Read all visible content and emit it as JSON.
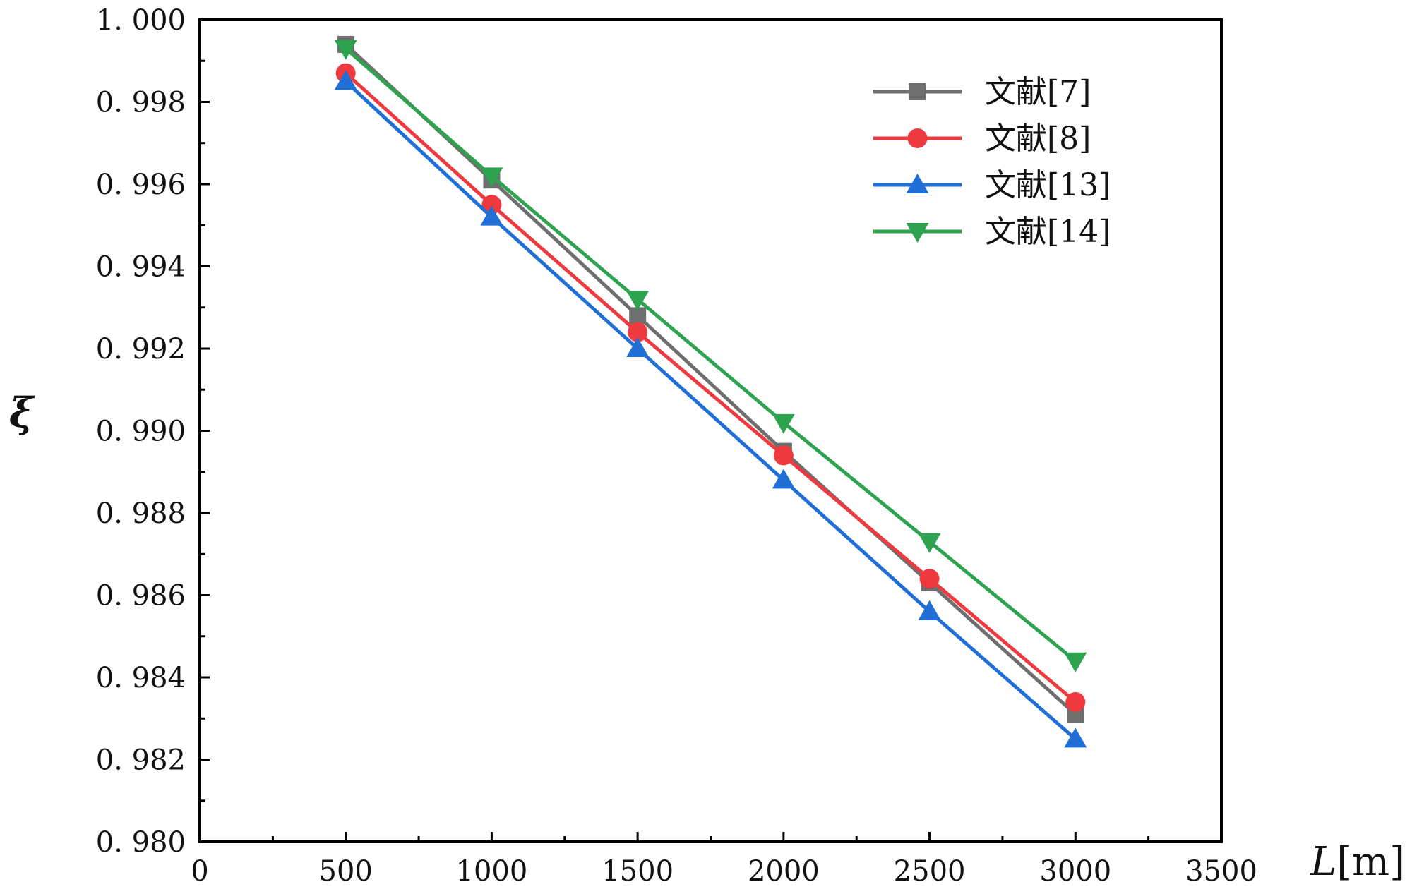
{
  "chart_data": {
    "type": "line",
    "title": "",
    "xlabel_var": "L",
    "xlabel_unit": "[m]",
    "ylabel": "ξ",
    "xlim": [
      0,
      3500
    ],
    "ylim": [
      0.98,
      1.0
    ],
    "x_ticks": [
      0,
      500,
      1000,
      1500,
      2000,
      2500,
      3000,
      3500
    ],
    "x_tick_labels": [
      "0",
      "500",
      "1000",
      "1500",
      "2000",
      "2500",
      "3000",
      "3500"
    ],
    "y_ticks": [
      0.98,
      0.982,
      0.984,
      0.986,
      0.988,
      0.99,
      0.992,
      0.994,
      0.996,
      0.998,
      1.0
    ],
    "y_tick_labels": [
      "0. 980",
      "0. 982",
      "0. 984",
      "0. 986",
      "0. 988",
      "0. 990",
      "0. 992",
      "0. 994",
      "0. 996",
      "0. 998",
      "1. 000"
    ],
    "grid": false,
    "legend_position": "top-right",
    "x": [
      500,
      1000,
      1500,
      2000,
      2500,
      3000
    ],
    "series": [
      {
        "name": "文献[7]",
        "marker": "square",
        "color": "#6e6e6e",
        "values": [
          0.9994,
          0.9961,
          0.9928,
          0.9895,
          0.9863,
          0.9831
        ]
      },
      {
        "name": "文献[8]",
        "marker": "circle",
        "color": "#ee3a3f",
        "values": [
          0.9987,
          0.9955,
          0.9924,
          0.9894,
          0.9864,
          0.9834
        ]
      },
      {
        "name": "文献[13]",
        "marker": "triangle-up",
        "color": "#1f6fd6",
        "values": [
          0.9985,
          0.9952,
          0.992,
          0.9888,
          0.9856,
          0.9825
        ]
      },
      {
        "name": "文献[14]",
        "marker": "triangle-down",
        "color": "#2da34f",
        "values": [
          0.9993,
          0.9962,
          0.9932,
          0.9902,
          0.9873,
          0.9844
        ]
      }
    ]
  }
}
